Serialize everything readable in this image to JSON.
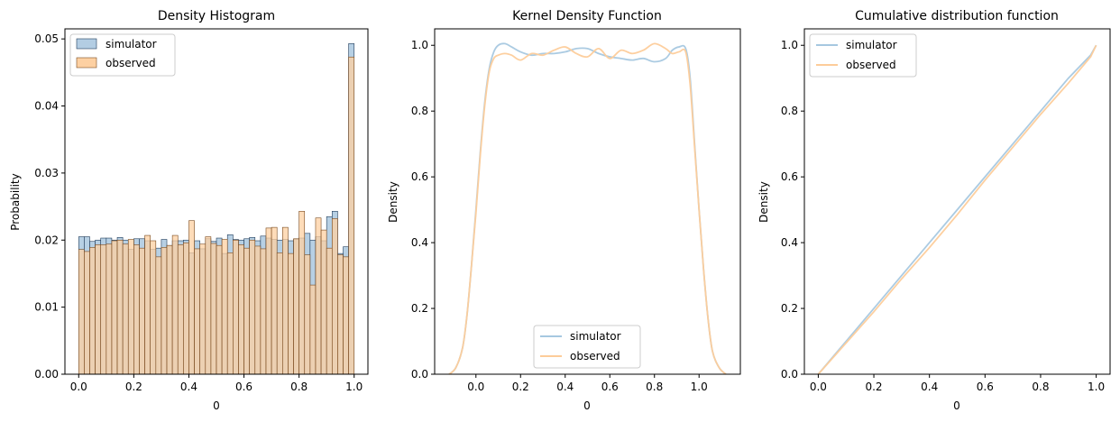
{
  "chart_data": [
    {
      "type": "bar",
      "title": "Density Histogram",
      "xlabel": "0",
      "ylabel": "Probability",
      "xlim": [
        -0.05,
        1.05
      ],
      "ylim": [
        0,
        0.0515
      ],
      "xticks": [
        0.0,
        0.2,
        0.4,
        0.6,
        0.8,
        1.0
      ],
      "xtick_labels": [
        "0.0",
        "0.2",
        "0.4",
        "0.6",
        "0.8",
        "1.0"
      ],
      "yticks": [
        0.0,
        0.01,
        0.02,
        0.03,
        0.04,
        0.05
      ],
      "ytick_labels": [
        "0.00",
        "0.01",
        "0.02",
        "0.03",
        "0.04",
        "0.05"
      ],
      "legend_position": "top-left",
      "bin_width": 0.02,
      "bin_starts": [
        0.0,
        0.02,
        0.04,
        0.06,
        0.08,
        0.1,
        0.12,
        0.14,
        0.16,
        0.18,
        0.2,
        0.22,
        0.24,
        0.26,
        0.28,
        0.3,
        0.32,
        0.34,
        0.36,
        0.38,
        0.4,
        0.42,
        0.44,
        0.46,
        0.48,
        0.5,
        0.52,
        0.54,
        0.56,
        0.58,
        0.6,
        0.62,
        0.64,
        0.66,
        0.68,
        0.7,
        0.72,
        0.74,
        0.76,
        0.78,
        0.8,
        0.82,
        0.84,
        0.86,
        0.88,
        0.9,
        0.92,
        0.94,
        0.96,
        0.98
      ],
      "series": [
        {
          "name": "simulator",
          "color": "#b3cde3",
          "edge": "#1f3b5a",
          "values": [
            0.0205,
            0.0205,
            0.0198,
            0.02,
            0.0203,
            0.0203,
            0.02,
            0.0204,
            0.02,
            0.0186,
            0.0202,
            0.0202,
            0.0199,
            0.0186,
            0.0188,
            0.0201,
            0.0192,
            0.0199,
            0.0199,
            0.02,
            0.0181,
            0.0199,
            0.0187,
            0.0202,
            0.0198,
            0.0203,
            0.018,
            0.0208,
            0.0201,
            0.02,
            0.0202,
            0.0204,
            0.0199,
            0.0206,
            0.0203,
            0.0201,
            0.02,
            0.0201,
            0.0199,
            0.0201,
            0.0203,
            0.021,
            0.02,
            0.0205,
            0.0199,
            0.0235,
            0.0243,
            0.018,
            0.019,
            0.0493
          ]
        },
        {
          "name": "observed",
          "color": "#fdd0a2",
          "edge": "#7a4a1e",
          "values": [
            0.0186,
            0.0183,
            0.0189,
            0.0193,
            0.0193,
            0.0194,
            0.0199,
            0.02,
            0.0194,
            0.0201,
            0.0193,
            0.0188,
            0.0207,
            0.0199,
            0.0175,
            0.0189,
            0.0192,
            0.0207,
            0.0193,
            0.0196,
            0.0229,
            0.0187,
            0.0194,
            0.0205,
            0.0195,
            0.0192,
            0.0201,
            0.0181,
            0.02,
            0.0193,
            0.0188,
            0.02,
            0.0191,
            0.0187,
            0.0218,
            0.0219,
            0.0181,
            0.0219,
            0.018,
            0.0202,
            0.0243,
            0.0178,
            0.0133,
            0.0233,
            0.0215,
            0.0188,
            0.0232,
            0.0178,
            0.0175,
            0.0473
          ]
        }
      ]
    },
    {
      "type": "line",
      "title": "Kernel Density Function",
      "xlabel": "0",
      "ylabel": "Density",
      "xlim": [
        -0.185,
        1.185
      ],
      "ylim": [
        0,
        1.05
      ],
      "xticks": [
        0.0,
        0.2,
        0.4,
        0.6,
        0.8,
        1.0
      ],
      "xtick_labels": [
        "0.0",
        "0.2",
        "0.4",
        "0.6",
        "0.8",
        "1.0"
      ],
      "yticks": [
        0.0,
        0.2,
        0.4,
        0.6,
        0.8,
        1.0
      ],
      "ytick_labels": [
        "0.0",
        "0.2",
        "0.4",
        "0.6",
        "0.8",
        "1.0"
      ],
      "legend_position": "lower-center",
      "series": [
        {
          "name": "simulator",
          "color": "#a6c8e0",
          "x": [
            -0.12,
            -0.09,
            -0.06,
            -0.04,
            -0.02,
            0.0,
            0.02,
            0.04,
            0.06,
            0.08,
            0.1,
            0.13,
            0.16,
            0.2,
            0.25,
            0.3,
            0.35,
            0.4,
            0.45,
            0.5,
            0.55,
            0.6,
            0.65,
            0.7,
            0.75,
            0.8,
            0.85,
            0.88,
            0.91,
            0.94,
            0.96,
            0.98,
            1.0,
            1.02,
            1.04,
            1.06,
            1.09,
            1.12
          ],
          "y": [
            0.0,
            0.02,
            0.08,
            0.18,
            0.33,
            0.5,
            0.68,
            0.83,
            0.93,
            0.98,
            1.0,
            1.005,
            0.995,
            0.98,
            0.97,
            0.975,
            0.975,
            0.98,
            0.99,
            0.99,
            0.975,
            0.965,
            0.96,
            0.955,
            0.96,
            0.95,
            0.96,
            0.985,
            0.995,
            0.99,
            0.9,
            0.7,
            0.5,
            0.32,
            0.17,
            0.07,
            0.02,
            0.0
          ]
        },
        {
          "name": "observed",
          "color": "#fdcc9a",
          "x": [
            -0.12,
            -0.09,
            -0.06,
            -0.04,
            -0.02,
            0.0,
            0.02,
            0.04,
            0.06,
            0.08,
            0.1,
            0.13,
            0.16,
            0.2,
            0.25,
            0.3,
            0.35,
            0.4,
            0.45,
            0.5,
            0.55,
            0.6,
            0.65,
            0.7,
            0.75,
            0.8,
            0.85,
            0.88,
            0.91,
            0.94,
            0.96,
            0.98,
            1.0,
            1.02,
            1.04,
            1.06,
            1.09,
            1.12
          ],
          "y": [
            0.0,
            0.02,
            0.08,
            0.18,
            0.33,
            0.49,
            0.67,
            0.82,
            0.92,
            0.96,
            0.97,
            0.975,
            0.97,
            0.955,
            0.975,
            0.97,
            0.985,
            0.995,
            0.975,
            0.965,
            0.99,
            0.96,
            0.985,
            0.975,
            0.985,
            1.005,
            0.99,
            0.975,
            0.98,
            0.98,
            0.88,
            0.69,
            0.5,
            0.32,
            0.17,
            0.07,
            0.02,
            0.0
          ]
        }
      ]
    },
    {
      "type": "line",
      "title": "Cumulative distribution function",
      "xlabel": "0",
      "ylabel": "Density",
      "xlim": [
        -0.05,
        1.05
      ],
      "ylim": [
        0,
        1.05
      ],
      "xticks": [
        0.0,
        0.2,
        0.4,
        0.6,
        0.8,
        1.0
      ],
      "xtick_labels": [
        "0.0",
        "0.2",
        "0.4",
        "0.6",
        "0.8",
        "1.0"
      ],
      "yticks": [
        0.0,
        0.2,
        0.4,
        0.6,
        0.8,
        1.0
      ],
      "ytick_labels": [
        "0.0",
        "0.2",
        "0.4",
        "0.6",
        "0.8",
        "1.0"
      ],
      "legend_position": "top-left",
      "series": [
        {
          "name": "simulator",
          "color": "#a6c8e0",
          "x": [
            0.0,
            0.1,
            0.2,
            0.3,
            0.4,
            0.5,
            0.6,
            0.7,
            0.8,
            0.9,
            0.98,
            1.0
          ],
          "y": [
            0.0,
            0.1,
            0.2,
            0.3,
            0.4,
            0.5,
            0.6,
            0.7,
            0.8,
            0.9,
            0.97,
            1.0
          ]
        },
        {
          "name": "observed",
          "color": "#fdcc9a",
          "x": [
            0.0,
            0.1,
            0.2,
            0.3,
            0.4,
            0.5,
            0.6,
            0.7,
            0.8,
            0.9,
            0.98,
            1.0
          ],
          "y": [
            0.0,
            0.095,
            0.19,
            0.29,
            0.385,
            0.485,
            0.59,
            0.69,
            0.79,
            0.885,
            0.965,
            1.0
          ]
        }
      ]
    }
  ]
}
